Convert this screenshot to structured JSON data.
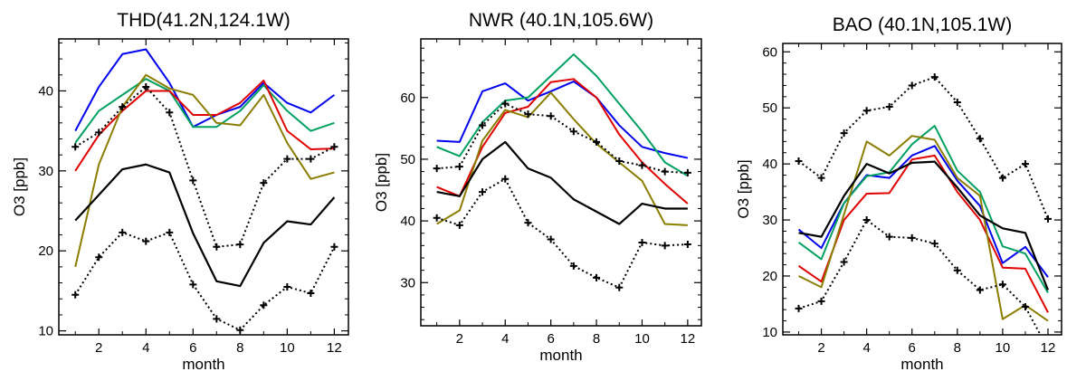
{
  "chart_data": [
    {
      "type": "line",
      "title": "THD(41.2N,124.1W)",
      "xlabel": "month",
      "ylabel": "O3 [ppb]",
      "x": [
        1,
        2,
        3,
        4,
        5,
        6,
        7,
        8,
        9,
        10,
        11,
        12
      ],
      "xlim": [
        0.3,
        12.6
      ],
      "ylim": [
        9.5,
        46.5
      ],
      "xticks": [
        2,
        4,
        6,
        8,
        10,
        12
      ],
      "yticks": [
        10,
        20,
        30,
        40
      ],
      "series": [
        {
          "color": "#0000ee",
          "style": "solid",
          "values": [
            35,
            40.5,
            44.6,
            45.2,
            41,
            35.5,
            37,
            38,
            41,
            38.5,
            37.3,
            39.5
          ]
        },
        {
          "color": "#00a060",
          "style": "solid",
          "values": [
            33.5,
            37.5,
            39.5,
            41.5,
            40,
            35.5,
            35.5,
            37.5,
            40.7,
            37.5,
            35,
            36
          ]
        },
        {
          "color": "#e00000",
          "style": "solid",
          "values": [
            30,
            34.5,
            37.5,
            40,
            40,
            37,
            37,
            38.5,
            41.3,
            35,
            32.7,
            32.8
          ]
        },
        {
          "color": "#8b7d00",
          "style": "solid",
          "values": [
            18,
            30.8,
            38,
            42,
            40.3,
            39.5,
            36,
            35.7,
            39.5,
            33.5,
            29,
            29.8
          ]
        },
        {
          "color": "#000000",
          "style": "solid",
          "values": [
            23.8,
            27,
            30.2,
            30.8,
            29.8,
            22.2,
            16.2,
            15.6,
            21,
            23.7,
            23.3,
            26.7
          ]
        },
        {
          "color": "#000000",
          "style": "dotted",
          "markers": "plus",
          "values": [
            33,
            34.8,
            38,
            40.5,
            37.3,
            28.8,
            20.5,
            20.8,
            28.5,
            31.5,
            31.5,
            33
          ]
        },
        {
          "color": "#000000",
          "style": "dotted",
          "markers": "plus",
          "values": [
            14.5,
            19.2,
            22.3,
            21.2,
            22.3,
            15.8,
            11.5,
            10.1,
            13.2,
            15.5,
            14.7,
            20.5
          ]
        }
      ]
    },
    {
      "type": "line",
      "title": "NWR (40.1N,105.6W)",
      "xlabel": "month",
      "ylabel": "O3 [ppb]",
      "x": [
        1,
        2,
        3,
        4,
        5,
        6,
        7,
        8,
        9,
        10,
        11,
        12
      ],
      "xlim": [
        0.3,
        12.6
      ],
      "ylim": [
        23,
        69.5
      ],
      "xticks": [
        2,
        4,
        6,
        8,
        10,
        12
      ],
      "yticks": [
        30,
        40,
        50,
        60
      ],
      "series": [
        {
          "color": "#0000ee",
          "style": "solid",
          "values": [
            53,
            52.8,
            61,
            62.3,
            59.5,
            61,
            62.6,
            60,
            55.5,
            52,
            51,
            50.2
          ]
        },
        {
          "color": "#00a060",
          "style": "solid",
          "values": [
            52,
            50.5,
            56,
            59.5,
            60,
            63.5,
            67,
            63.5,
            59,
            54.5,
            49.5,
            47.3
          ]
        },
        {
          "color": "#e00000",
          "style": "solid",
          "values": [
            45.5,
            44,
            52,
            57.5,
            58.5,
            62.5,
            63,
            60,
            54,
            49.5,
            46,
            42.8
          ]
        },
        {
          "color": "#8b7d00",
          "style": "solid",
          "values": [
            39.5,
            41.7,
            53,
            58,
            56.8,
            60.8,
            56.5,
            52.5,
            49.5,
            46.5,
            39.5,
            39.3
          ]
        },
        {
          "color": "#000000",
          "style": "solid",
          "values": [
            44.7,
            44,
            50,
            52.8,
            48.5,
            47,
            43.5,
            41.5,
            39.5,
            42.8,
            42,
            42
          ]
        },
        {
          "color": "#000000",
          "style": "dotted",
          "markers": "plus",
          "values": [
            48.5,
            48.8,
            55.5,
            59,
            57.3,
            57,
            54.5,
            52.8,
            49.7,
            49,
            48,
            47.8
          ]
        },
        {
          "color": "#000000",
          "style": "dotted",
          "markers": "plus",
          "values": [
            40.5,
            39.3,
            44.7,
            46.8,
            39.7,
            37,
            32.7,
            30.8,
            29.2,
            36.5,
            36,
            36.2
          ]
        }
      ]
    },
    {
      "type": "line",
      "title": "BAO (40.1N,105.1W)",
      "xlabel": "month",
      "ylabel": "O3 [ppb]",
      "x": [
        1,
        2,
        3,
        4,
        5,
        6,
        7,
        8,
        9,
        10,
        11,
        12
      ],
      "xlim": [
        0.3,
        12.6
      ],
      "ylim": [
        9.5,
        61.5
      ],
      "xticks": [
        2,
        4,
        6,
        8,
        10,
        12
      ],
      "yticks": [
        10,
        20,
        30,
        40,
        50,
        60
      ],
      "series": [
        {
          "color": "#0000ee",
          "style": "solid",
          "values": [
            28.3,
            25,
            33,
            38,
            37.5,
            41.5,
            43.2,
            37,
            32.5,
            22.3,
            25.2,
            19.8
          ]
        },
        {
          "color": "#00a060",
          "style": "solid",
          "values": [
            26,
            23,
            33,
            37.8,
            38.5,
            43.5,
            46.8,
            38.8,
            35,
            25.3,
            24,
            17
          ]
        },
        {
          "color": "#e00000",
          "style": "solid",
          "values": [
            21.8,
            19,
            30,
            34.7,
            34.8,
            40.8,
            41.5,
            35,
            30,
            21.5,
            21.3,
            13.5
          ]
        },
        {
          "color": "#8b7d00",
          "style": "solid",
          "values": [
            20,
            18,
            31,
            44,
            41.5,
            45,
            44.3,
            37.5,
            34.3,
            12.3,
            14.8,
            12
          ]
        },
        {
          "color": "#000000",
          "style": "solid",
          "values": [
            27.7,
            27,
            34.3,
            40,
            38.3,
            40.2,
            40.4,
            35.8,
            30.8,
            28.5,
            27.7,
            17.5
          ]
        },
        {
          "color": "#000000",
          "style": "dotted",
          "markers": "plus",
          "values": [
            40.5,
            37.5,
            45.5,
            49.5,
            50.2,
            54,
            55.5,
            51,
            44.5,
            37.5,
            40,
            30.2
          ]
        },
        {
          "color": "#000000",
          "style": "dotted",
          "markers": "plus",
          "values": [
            14.2,
            15.5,
            22.5,
            30,
            27,
            26.8,
            25.8,
            21,
            17.5,
            18.5,
            14.5,
            7
          ]
        }
      ]
    }
  ]
}
